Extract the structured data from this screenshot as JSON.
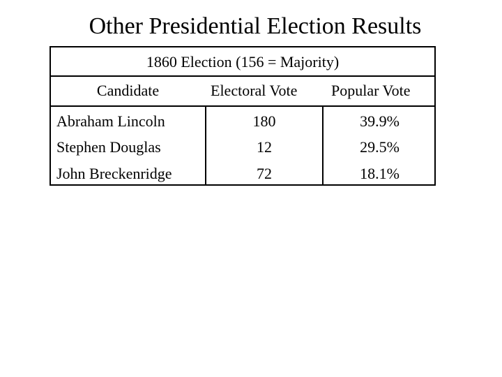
{
  "title": "Other Presidential Election Results",
  "table": {
    "caption": "1860 Election (156 = Majority)",
    "headers": {
      "candidate": "Candidate",
      "electoral_vote": "Electoral Vote",
      "popular_vote": "Popular Vote"
    },
    "rows": [
      {
        "candidate": "Abraham Lincoln",
        "electoral_vote": "180",
        "popular_vote": "39.9%"
      },
      {
        "candidate": "Stephen Douglas",
        "electoral_vote": "12",
        "popular_vote": "29.5%"
      },
      {
        "candidate": "John Breckenridge",
        "electoral_vote": "72",
        "popular_vote": "18.1%"
      }
    ]
  }
}
